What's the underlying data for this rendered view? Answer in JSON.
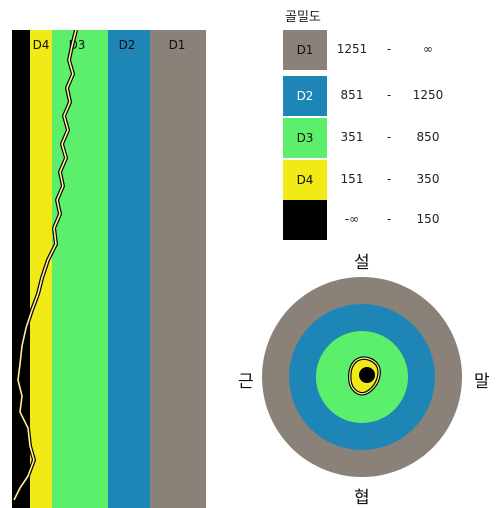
{
  "legend": {
    "title": "골밀도",
    "rows": [
      {
        "zone": "D1",
        "from": "1251",
        "sep": "-",
        "to": "∞",
        "color": "#8a8279",
        "text_color": "#111111"
      },
      {
        "zone": "D2",
        "from": "851",
        "sep": "-",
        "to": "1250",
        "color": "#1e86b6",
        "text_color": "#ffffff"
      },
      {
        "zone": "D3",
        "from": "351",
        "sep": "-",
        "to": "850",
        "color": "#5bef6c",
        "text_color": "#111111"
      },
      {
        "zone": "D4",
        "from": "151",
        "sep": "-",
        "to": "350",
        "color": "#f2ea16",
        "text_color": "#111111"
      },
      {
        "zone": "",
        "from": "-∞",
        "sep": "-",
        "to": "150",
        "color": "#000000",
        "text_color": "#ffffff"
      }
    ]
  },
  "strip": {
    "labels": [
      "D4",
      "D3",
      "D2",
      "D1"
    ]
  },
  "directions": {
    "top": "설",
    "bottom": "협",
    "left": "근",
    "right": "말"
  },
  "colors": {
    "d1": "#8a8279",
    "d2": "#1e86b6",
    "d3": "#5bef6c",
    "d4": "#f2ea16",
    "black": "#000000",
    "outline": "#ffef9a"
  }
}
